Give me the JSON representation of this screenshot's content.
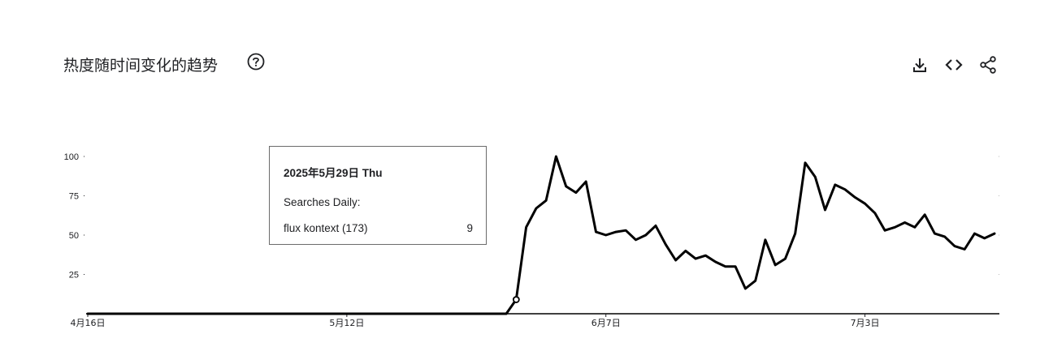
{
  "header": {
    "title": "热度随时间变化的趋势",
    "help_icon": "help-circle-icon",
    "toolbar": [
      {
        "name": "download-icon"
      },
      {
        "name": "embed-code-icon"
      },
      {
        "name": "share-icon"
      }
    ]
  },
  "tooltip": {
    "date": "2025年5月29日 Thu",
    "label": "Searches Daily:",
    "series": "flux kontext (173)",
    "value": "9"
  },
  "colors": {
    "line": "#000000",
    "axis": "#000000",
    "text": "#202124"
  },
  "chart_data": {
    "type": "line",
    "y_ticks": [
      "25",
      "50",
      "75",
      "100"
    ],
    "x_ticks": [
      {
        "label": "4月16日",
        "index": 0
      },
      {
        "label": "5月12日",
        "index": 26
      },
      {
        "label": "6月7日",
        "index": 52
      },
      {
        "label": "7月3日",
        "index": 78
      }
    ],
    "ylim": [
      0,
      100
    ],
    "grid": false,
    "series": [
      {
        "name": "flux kontext (173)",
        "values": [
          0,
          0,
          0,
          0,
          0,
          0,
          0,
          0,
          0,
          0,
          0,
          0,
          0,
          0,
          0,
          0,
          0,
          0,
          0,
          0,
          0,
          0,
          0,
          0,
          0,
          0,
          0,
          0,
          0,
          0,
          0,
          0,
          0,
          0,
          0,
          0,
          0,
          0,
          0,
          0,
          0,
          0,
          0,
          9,
          55,
          67,
          72,
          100,
          81,
          77,
          84,
          52,
          50,
          52,
          53,
          47,
          50,
          56,
          44,
          34,
          40,
          35,
          37,
          33,
          30,
          30,
          16,
          21,
          47,
          31,
          35,
          51,
          96,
          87,
          66,
          82,
          79,
          74,
          70,
          64,
          53,
          55,
          58,
          55,
          63,
          51,
          49,
          43,
          41,
          51,
          48,
          51
        ]
      }
    ],
    "highlight_index": 43
  }
}
